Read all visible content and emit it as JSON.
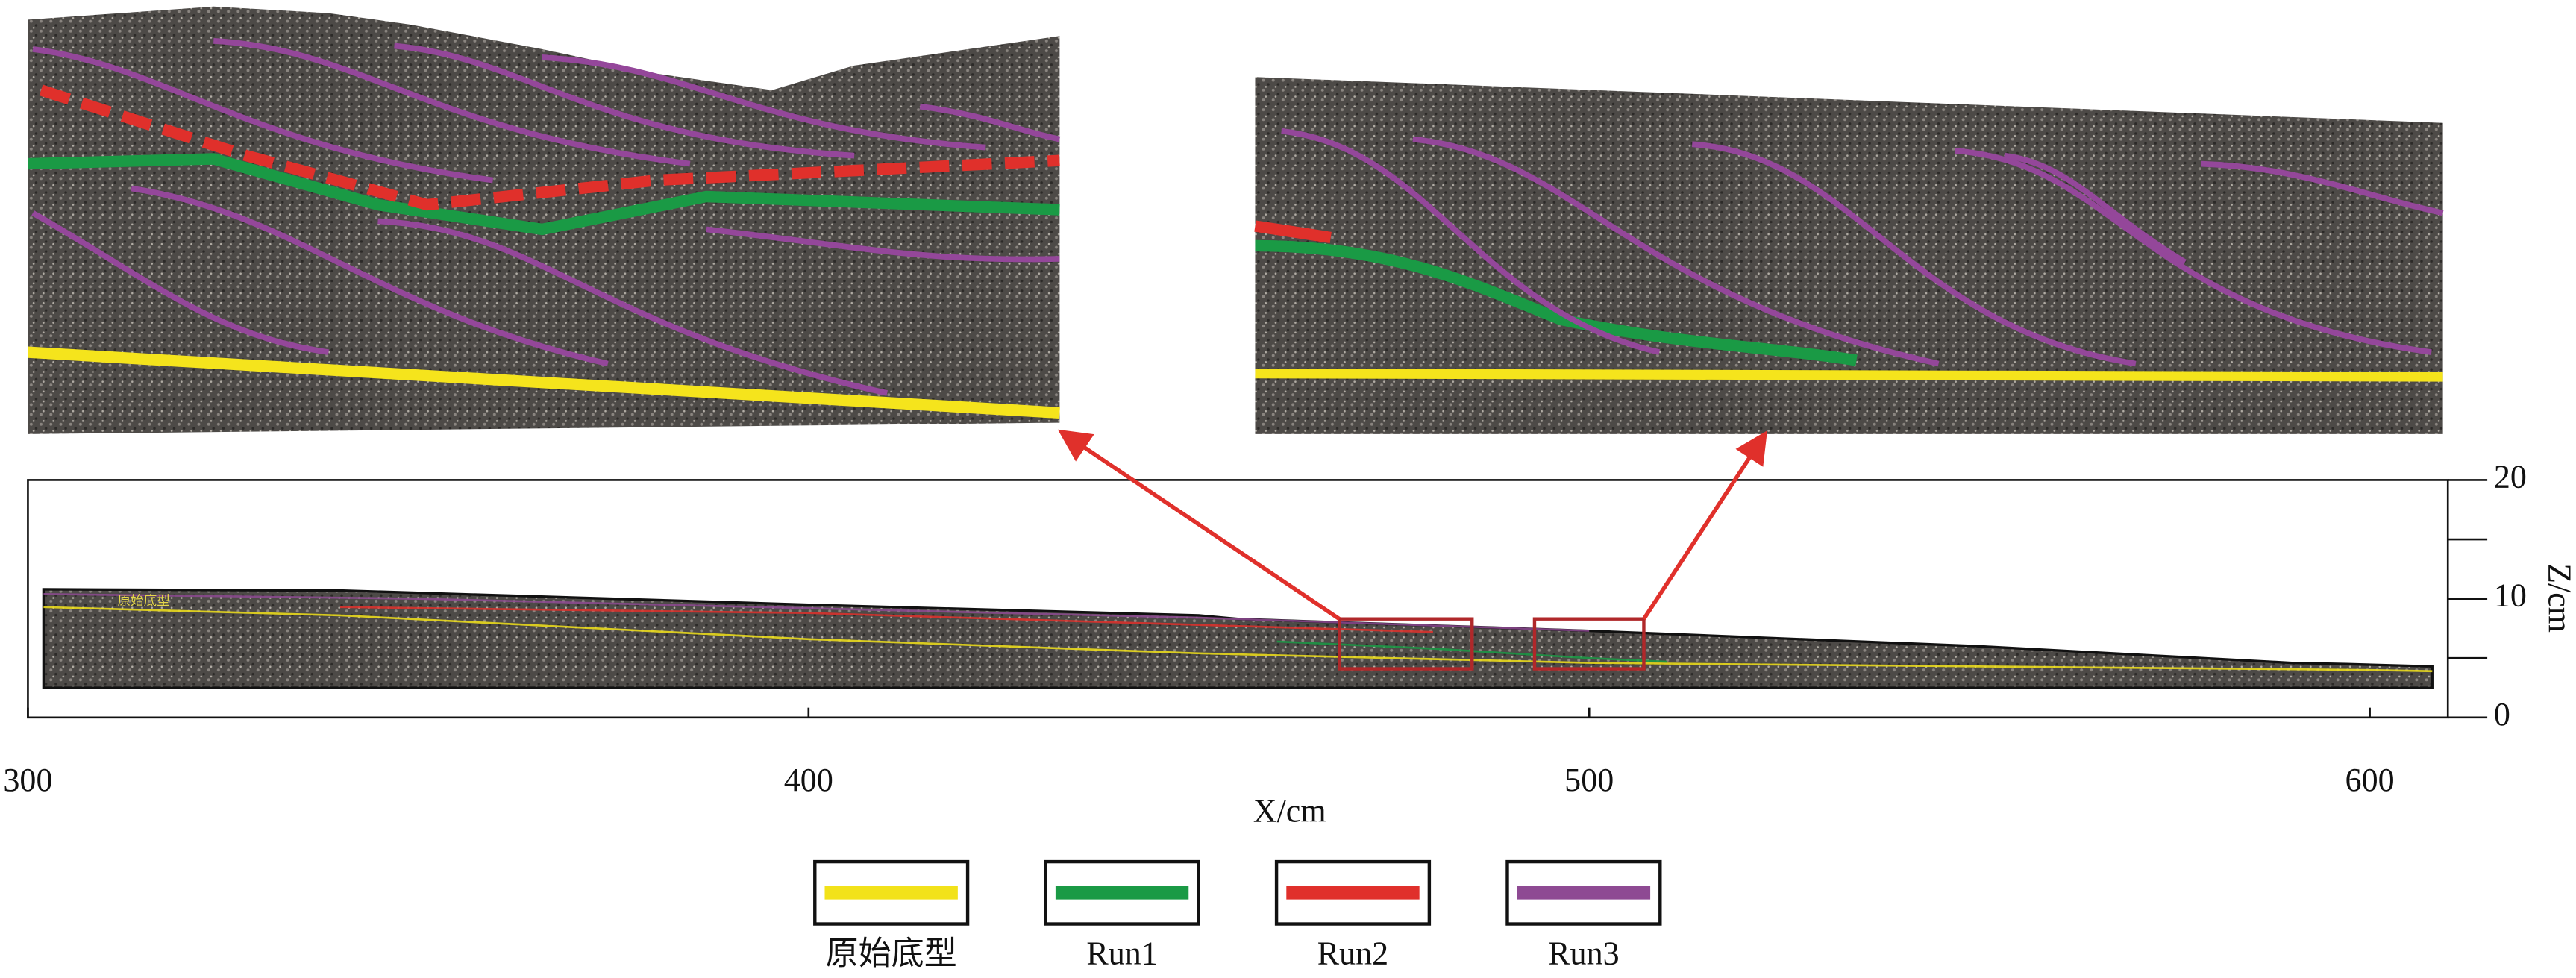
{
  "chart_data": {
    "type": "profile",
    "x_label": "X/cm",
    "y_label": "Z/cm",
    "xlim": [
      300,
      610
    ],
    "xticks": [
      300,
      400,
      500,
      600
    ],
    "ylim": [
      0,
      20
    ],
    "yticks": [
      0,
      10,
      20
    ],
    "minor_yticks": [
      5,
      15
    ],
    "profile": {
      "x": [
        302,
        335,
        340,
        400,
        450,
        455,
        500,
        550,
        590,
        597,
        608
      ],
      "top": [
        10.8,
        10.7,
        10.7,
        9.5,
        8.6,
        8.3,
        7.3,
        6.0,
        4.6,
        4.5,
        4.3
      ],
      "base": 2.5
    },
    "insets": [
      {
        "xlim": [
          468,
          485
        ],
        "ylim": [
          4.1,
          8.3
        ]
      },
      {
        "xlim": [
          493,
          507
        ],
        "ylim": [
          4.1,
          8.3
        ]
      }
    ],
    "annotation": "原始底型",
    "series": [
      {
        "name": "原始底型",
        "color": "#f2e21a",
        "x": [
          302,
          340,
          400,
          450,
          500,
          550,
          600,
          608
        ],
        "values": [
          9.3,
          8.6,
          6.6,
          5.4,
          4.6,
          4.3,
          4.0,
          3.9
        ]
      },
      {
        "name": "Run1",
        "color": "#1a9a45",
        "x": [
          460,
          480,
          500,
          510
        ],
        "values": [
          6.4,
          5.8,
          5.0,
          4.7
        ]
      },
      {
        "name": "Run2",
        "color": "#e0302b",
        "x": [
          340,
          400,
          460,
          480
        ],
        "values": [
          9.3,
          8.8,
          7.6,
          7.2
        ]
      },
      {
        "name": "Run3",
        "color": "#8e4a93",
        "x": [
          302,
          350,
          400,
          450,
          500
        ],
        "values": [
          10.4,
          10.0,
          9.2,
          8.4,
          7.3
        ]
      }
    ]
  }
}
